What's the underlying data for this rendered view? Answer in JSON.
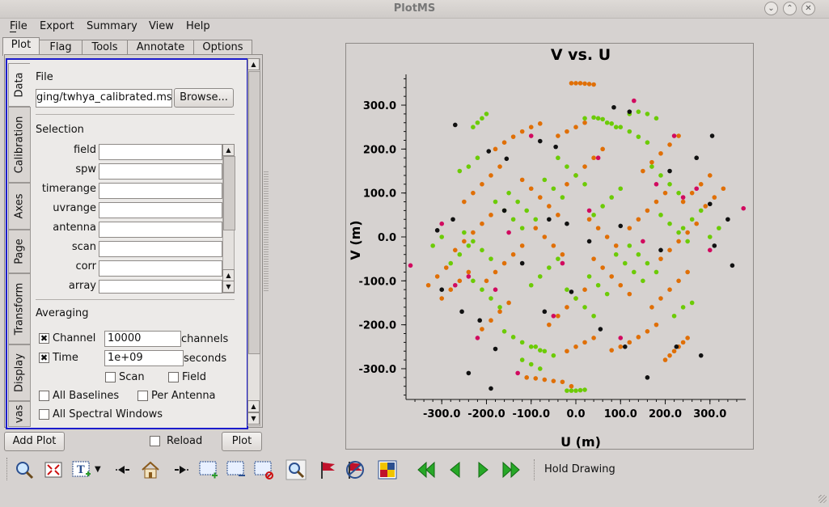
{
  "window": {
    "title": "PlotMS"
  },
  "menu": {
    "items": [
      "File",
      "Export",
      "Summary",
      "View",
      "Help"
    ]
  },
  "tabs": [
    "Plot",
    "Flag",
    "Tools",
    "Annotate",
    "Options"
  ],
  "side_tabs": [
    "Data",
    "Calibration",
    "Axes",
    "Page",
    "Transform",
    "Display",
    "vas"
  ],
  "data_panel": {
    "file_heading": "File",
    "file_value": "ging/twhya_calibrated.ms",
    "browse_label": "Browse...",
    "selection_heading": "Selection",
    "selection_fields": [
      {
        "label": "field",
        "value": ""
      },
      {
        "label": "spw",
        "value": ""
      },
      {
        "label": "timerange",
        "value": ""
      },
      {
        "label": "uvrange",
        "value": ""
      },
      {
        "label": "antenna",
        "value": ""
      },
      {
        "label": "scan",
        "value": ""
      },
      {
        "label": "corr",
        "value": ""
      },
      {
        "label": "array",
        "value": ""
      }
    ],
    "averaging_heading": "Averaging",
    "channel": {
      "label": "Channel",
      "checked": true,
      "value": "10000",
      "unit": "channels"
    },
    "time": {
      "label": "Time",
      "checked": true,
      "value": "1e+09",
      "unit": "seconds"
    },
    "scan_label": "Scan",
    "field_label": "Field",
    "all_baselines_label": "All Baselines",
    "per_antenna_label": "Per Antenna",
    "all_spw_label": "All Spectral Windows"
  },
  "bottom": {
    "add_plot": "Add Plot",
    "reload": "Reload",
    "plot": "Plot"
  },
  "toolbar": {
    "icons": [
      "zoom-icon",
      "zoom-fit-icon",
      "annotate-text-icon",
      "dropdown-arrow-icon",
      "step-back-icon",
      "home-icon",
      "step-forward-icon",
      "add-region-icon",
      "subtract-region-icon",
      "clear-region-icon",
      "inspect-icon",
      "flag-icon",
      "unflag-icon",
      "locate-icon",
      "first-iteration-icon",
      "previous-iteration-icon",
      "next-iteration-icon",
      "last-iteration-icon"
    ],
    "hold_drawing": "Hold Drawing"
  },
  "chart_data": {
    "type": "scatter",
    "title": "V vs. U",
    "xlabel": "U (m)",
    "ylabel": "V (m)",
    "xlim": [
      -380,
      380
    ],
    "ylim": [
      -370,
      370
    ],
    "xticks": [
      "-300.0",
      "-200.0",
      "-100.0",
      "0.0",
      "100.0",
      "200.0",
      "300.0"
    ],
    "yticks": [
      "300.0",
      "200.0",
      "100.0",
      "0.0",
      "-100.0",
      "-200.0",
      "-300.0"
    ],
    "xtick_values": [
      -300,
      -200,
      -100,
      0,
      100,
      200,
      300
    ],
    "ytick_values": [
      300,
      200,
      100,
      0,
      -100,
      -200,
      -300
    ],
    "grid": false,
    "series": [
      {
        "color": "#e06f06",
        "points": [
          [
            -10,
            350
          ],
          [
            0,
            350
          ],
          [
            10,
            350
          ],
          [
            20,
            349
          ],
          [
            30,
            348
          ],
          [
            40,
            347
          ],
          [
            200,
            -280
          ],
          [
            210,
            -270
          ],
          [
            220,
            -260
          ],
          [
            230,
            -250
          ],
          [
            240,
            -240
          ],
          [
            250,
            -230
          ],
          [
            -180,
            200
          ],
          [
            -160,
            215
          ],
          [
            -140,
            228
          ],
          [
            -120,
            240
          ],
          [
            -100,
            250
          ],
          [
            -80,
            258
          ],
          [
            180,
            -200
          ],
          [
            160,
            -215
          ],
          [
            140,
            -228
          ],
          [
            120,
            -240
          ],
          [
            100,
            -250
          ],
          [
            80,
            -258
          ],
          [
            -250,
            80
          ],
          [
            -230,
            100
          ],
          [
            -210,
            120
          ],
          [
            -190,
            140
          ],
          [
            -170,
            160
          ],
          [
            250,
            -80
          ],
          [
            230,
            -100
          ],
          [
            210,
            -120
          ],
          [
            190,
            -140
          ],
          [
            170,
            -160
          ],
          [
            -270,
            -30
          ],
          [
            -250,
            -10
          ],
          [
            -230,
            10
          ],
          [
            -210,
            30
          ],
          [
            -190,
            50
          ],
          [
            270,
            30
          ],
          [
            250,
            10
          ],
          [
            230,
            -10
          ],
          [
            210,
            -30
          ],
          [
            190,
            -50
          ],
          [
            -200,
            -100
          ],
          [
            -180,
            -80
          ],
          [
            -160,
            -60
          ],
          [
            -140,
            -40
          ],
          [
            -120,
            -20
          ],
          [
            200,
            100
          ],
          [
            180,
            80
          ],
          [
            160,
            60
          ],
          [
            140,
            40
          ],
          [
            120,
            20
          ],
          [
            -120,
            130
          ],
          [
            -100,
            110
          ],
          [
            -80,
            90
          ],
          [
            -60,
            70
          ],
          [
            -40,
            50
          ],
          [
            120,
            -130
          ],
          [
            100,
            -110
          ],
          [
            80,
            -90
          ],
          [
            60,
            -70
          ],
          [
            40,
            -50
          ],
          [
            -60,
            -200
          ],
          [
            -40,
            -180
          ],
          [
            -20,
            -160
          ],
          [
            0,
            -140
          ],
          [
            20,
            -120
          ],
          [
            60,
            200
          ],
          [
            40,
            180
          ],
          [
            20,
            160
          ],
          [
            0,
            140
          ],
          [
            -20,
            120
          ],
          [
            -300,
            -140
          ],
          [
            -280,
            -120
          ],
          [
            -260,
            -100
          ],
          [
            -240,
            -80
          ],
          [
            300,
            140
          ],
          [
            280,
            120
          ],
          [
            260,
            100
          ],
          [
            240,
            80
          ],
          [
            -110,
            -320
          ],
          [
            -90,
            -322
          ],
          [
            -70,
            -325
          ],
          [
            -50,
            -328
          ],
          [
            -30,
            -330
          ],
          [
            -10,
            -340
          ],
          [
            150,
            150
          ],
          [
            170,
            170
          ],
          [
            190,
            190
          ],
          [
            210,
            210
          ],
          [
            230,
            230
          ],
          [
            -150,
            -150
          ],
          [
            -170,
            -170
          ],
          [
            -190,
            -190
          ],
          [
            -210,
            -210
          ],
          [
            -40,
            230
          ],
          [
            -20,
            240
          ],
          [
            0,
            250
          ],
          [
            20,
            260
          ],
          [
            40,
            -230
          ],
          [
            20,
            -240
          ],
          [
            0,
            -250
          ],
          [
            -20,
            -260
          ],
          [
            -90,
            20
          ],
          [
            -70,
            0
          ],
          [
            -50,
            -20
          ],
          [
            -30,
            -40
          ],
          [
            90,
            -20
          ],
          [
            70,
            0
          ],
          [
            50,
            20
          ],
          [
            30,
            40
          ],
          [
            -330,
            -110
          ],
          [
            -310,
            -90
          ],
          [
            -290,
            -70
          ],
          [
            330,
            110
          ],
          [
            310,
            90
          ],
          [
            290,
            70
          ]
        ]
      },
      {
        "color": "#6ccb06",
        "points": [
          [
            -20,
            -350
          ],
          [
            -10,
            -350
          ],
          [
            0,
            -350
          ],
          [
            10,
            -349
          ],
          [
            20,
            -348
          ],
          [
            -200,
            280
          ],
          [
            -210,
            270
          ],
          [
            -220,
            260
          ],
          [
            -230,
            250
          ],
          [
            -160,
            -215
          ],
          [
            -140,
            -228
          ],
          [
            -120,
            -240
          ],
          [
            -100,
            -250
          ],
          [
            -80,
            -258
          ],
          [
            160,
            215
          ],
          [
            140,
            228
          ],
          [
            120,
            240
          ],
          [
            100,
            250
          ],
          [
            80,
            258
          ],
          [
            20,
            270
          ],
          [
            40,
            272
          ],
          [
            60,
            268
          ],
          [
            -230,
            -100
          ],
          [
            -210,
            -120
          ],
          [
            -190,
            -140
          ],
          [
            -170,
            -160
          ],
          [
            230,
            100
          ],
          [
            210,
            120
          ],
          [
            190,
            140
          ],
          [
            170,
            160
          ],
          [
            -250,
            10
          ],
          [
            -230,
            -10
          ],
          [
            -210,
            -30
          ],
          [
            -190,
            -50
          ],
          [
            250,
            -10
          ],
          [
            230,
            10
          ],
          [
            210,
            30
          ],
          [
            190,
            50
          ],
          [
            -180,
            80
          ],
          [
            -160,
            60
          ],
          [
            -140,
            40
          ],
          [
            -120,
            20
          ],
          [
            180,
            -80
          ],
          [
            160,
            -60
          ],
          [
            140,
            -40
          ],
          [
            120,
            -20
          ],
          [
            -100,
            -110
          ],
          [
            -80,
            -90
          ],
          [
            -60,
            -70
          ],
          [
            -40,
            -50
          ],
          [
            100,
            110
          ],
          [
            80,
            90
          ],
          [
            60,
            70
          ],
          [
            40,
            50
          ],
          [
            -40,
            180
          ],
          [
            -20,
            160
          ],
          [
            0,
            140
          ],
          [
            20,
            120
          ],
          [
            40,
            -180
          ],
          [
            20,
            -160
          ],
          [
            0,
            -140
          ],
          [
            -20,
            -120
          ],
          [
            -280,
            -60
          ],
          [
            -260,
            -40
          ],
          [
            -240,
            -20
          ],
          [
            280,
            60
          ],
          [
            260,
            40
          ],
          [
            240,
            20
          ],
          [
            -120,
            -280
          ],
          [
            -100,
            -290
          ],
          [
            -80,
            -300
          ],
          [
            120,
            280
          ],
          [
            140,
            285
          ],
          [
            160,
            280
          ],
          [
            180,
            270
          ],
          [
            -150,
            100
          ],
          [
            -130,
            80
          ],
          [
            -110,
            60
          ],
          [
            -90,
            40
          ],
          [
            150,
            -100
          ],
          [
            130,
            -80
          ],
          [
            110,
            -60
          ],
          [
            90,
            -40
          ],
          [
            -70,
            130
          ],
          [
            -50,
            110
          ],
          [
            -30,
            90
          ],
          [
            70,
            -130
          ],
          [
            50,
            -110
          ],
          [
            30,
            -90
          ],
          [
            -260,
            150
          ],
          [
            -240,
            160
          ],
          [
            -220,
            180
          ],
          [
            260,
            -150
          ],
          [
            240,
            -160
          ],
          [
            220,
            -180
          ],
          [
            -320,
            -20
          ],
          [
            -300,
            0
          ],
          [
            320,
            20
          ],
          [
            300,
            0
          ],
          [
            -90,
            -250
          ],
          [
            -70,
            -260
          ],
          [
            -50,
            -270
          ],
          [
            90,
            250
          ],
          [
            70,
            260
          ],
          [
            50,
            270
          ]
        ]
      },
      {
        "color": "#111111",
        "points": [
          [
            -270,
            255
          ],
          [
            -195,
            195
          ],
          [
            -155,
            178
          ],
          [
            -80,
            218
          ],
          [
            -45,
            205
          ],
          [
            85,
            295
          ],
          [
            120,
            285
          ],
          [
            -275,
            40
          ],
          [
            -310,
            15
          ],
          [
            -300,
            -120
          ],
          [
            -255,
            -170
          ],
          [
            -215,
            -190
          ],
          [
            -180,
            -255
          ],
          [
            -70,
            -170
          ],
          [
            -10,
            -125
          ],
          [
            55,
            -210
          ],
          [
            110,
            -250
          ],
          [
            160,
            -320
          ],
          [
            225,
            -250
          ],
          [
            280,
            -270
          ],
          [
            310,
            -20
          ],
          [
            350,
            -65
          ],
          [
            300,
            75
          ],
          [
            340,
            40
          ],
          [
            270,
            180
          ],
          [
            305,
            230
          ],
          [
            210,
            150
          ],
          [
            190,
            -30
          ],
          [
            100,
            25
          ],
          [
            -20,
            30
          ],
          [
            -120,
            -60
          ],
          [
            -160,
            60
          ],
          [
            30,
            -10
          ],
          [
            -60,
            40
          ],
          [
            -240,
            -310
          ],
          [
            -190,
            -345
          ]
        ]
      },
      {
        "color": "#d10a5f",
        "points": [
          [
            -370,
            -65
          ],
          [
            375,
            65
          ],
          [
            -300,
            30
          ],
          [
            300,
            -30
          ],
          [
            -180,
            -120
          ],
          [
            180,
            120
          ],
          [
            -100,
            230
          ],
          [
            100,
            -230
          ],
          [
            -220,
            -230
          ],
          [
            220,
            230
          ],
          [
            -30,
            -60
          ],
          [
            30,
            60
          ],
          [
            -240,
            -90
          ],
          [
            240,
            90
          ],
          [
            -150,
            10
          ],
          [
            150,
            -10
          ],
          [
            -50,
            -180
          ],
          [
            50,
            180
          ],
          [
            -270,
            -110
          ],
          [
            270,
            110
          ],
          [
            -130,
            -310
          ],
          [
            130,
            310
          ]
        ]
      }
    ]
  }
}
